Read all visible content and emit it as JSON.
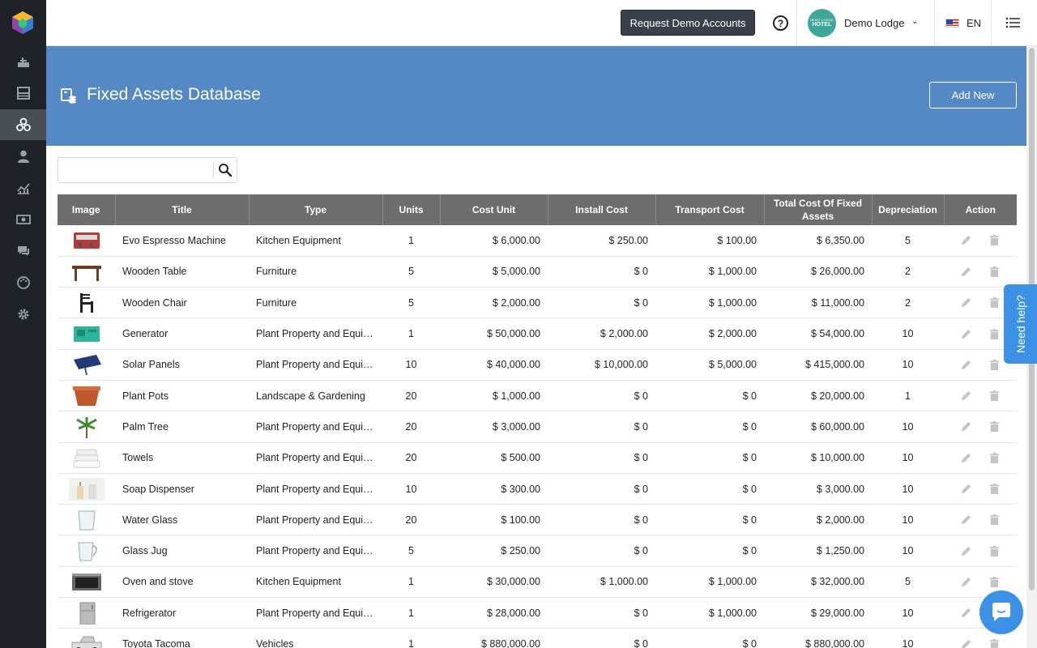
{
  "topbar": {
    "demo_button": "Request Demo Accounts",
    "hotel_name": "Demo Lodge",
    "avatar_small": "DEMO LODGE",
    "avatar_big": "HOTEL",
    "language": "EN"
  },
  "header": {
    "title": "Fixed Assets Database",
    "add_button": "Add New"
  },
  "search": {
    "value": "",
    "placeholder": ""
  },
  "table": {
    "columns": [
      "Image",
      "Title",
      "Type",
      "Units",
      "Cost Unit",
      "Install Cost",
      "Transport Cost",
      "Total Cost Of Fixed Assets",
      "Depreciation",
      "Action"
    ],
    "rows": [
      {
        "image": "espresso-machine",
        "title": "Evo Espresso Machine",
        "type": "Kitchen Equipment",
        "units": "1",
        "cost_unit": "$ 6,000.00",
        "install": "$ 250.00",
        "transport": "$ 100.00",
        "total": "$ 6,350.00",
        "depreciation": "5"
      },
      {
        "image": "wooden-table",
        "title": "Wooden Table",
        "type": "Furniture",
        "units": "5",
        "cost_unit": "$ 5,000.00",
        "install": "$ 0",
        "transport": "$ 1,000.00",
        "total": "$ 26,000.00",
        "depreciation": "2"
      },
      {
        "image": "wooden-chair",
        "title": "Wooden Chair",
        "type": "Furniture",
        "units": "5",
        "cost_unit": "$ 2,000.00",
        "install": "$ 0",
        "transport": "$ 1,000.00",
        "total": "$ 11,000.00",
        "depreciation": "2"
      },
      {
        "image": "generator",
        "title": "Generator",
        "type": "Plant Property and Equipment",
        "units": "1",
        "cost_unit": "$ 50,000.00",
        "install": "$ 2,000.00",
        "transport": "$ 2,000.00",
        "total": "$ 54,000.00",
        "depreciation": "10"
      },
      {
        "image": "solar-panel",
        "title": "Solar Panels",
        "type": "Plant Property and Equipment",
        "units": "10",
        "cost_unit": "$ 40,000.00",
        "install": "$ 10,000.00",
        "transport": "$ 5,000.00",
        "total": "$ 415,000.00",
        "depreciation": "10"
      },
      {
        "image": "plant-pot",
        "title": "Plant Pots",
        "type": "Landscape & Gardening",
        "units": "20",
        "cost_unit": "$ 1,000.00",
        "install": "$ 0",
        "transport": "$ 0",
        "total": "$ 20,000.00",
        "depreciation": "1"
      },
      {
        "image": "palm-tree",
        "title": "Palm Tree",
        "type": "Plant Property and Equipment",
        "units": "20",
        "cost_unit": "$ 3,000.00",
        "install": "$ 0",
        "transport": "$ 0",
        "total": "$ 60,000.00",
        "depreciation": "10"
      },
      {
        "image": "towels",
        "title": "Towels",
        "type": "Plant Property and Equipment",
        "units": "20",
        "cost_unit": "$ 500.00",
        "install": "$ 0",
        "transport": "$ 0",
        "total": "$ 10,000.00",
        "depreciation": "10"
      },
      {
        "image": "soap-dispenser",
        "title": "Soap Dispenser",
        "type": "Plant Property and Equipment",
        "units": "10",
        "cost_unit": "$ 300.00",
        "install": "$ 0",
        "transport": "$ 0",
        "total": "$ 3,000.00",
        "depreciation": "10"
      },
      {
        "image": "water-glass",
        "title": "Water Glass",
        "type": "Plant Property and Equipment",
        "units": "20",
        "cost_unit": "$ 100.00",
        "install": "$ 0",
        "transport": "$ 0",
        "total": "$ 2,000.00",
        "depreciation": "10"
      },
      {
        "image": "glass-jug",
        "title": "Glass Jug",
        "type": "Plant Property and Equipment",
        "units": "5",
        "cost_unit": "$ 250.00",
        "install": "$ 0",
        "transport": "$ 0",
        "total": "$ 1,250.00",
        "depreciation": "10"
      },
      {
        "image": "oven",
        "title": "Oven and stove",
        "type": "Kitchen Equipment",
        "units": "1",
        "cost_unit": "$ 30,000.00",
        "install": "$ 1,000.00",
        "transport": "$ 1,000.00",
        "total": "$ 32,000.00",
        "depreciation": "5"
      },
      {
        "image": "refrigerator",
        "title": "Refrigerator",
        "type": "Plant Property and Equipment",
        "units": "1",
        "cost_unit": "$ 28,000.00",
        "install": "$ 0",
        "transport": "$ 1,000.00",
        "total": "$ 29,000.00",
        "depreciation": "10"
      },
      {
        "image": "pickup-truck",
        "title": "Toyota Tacoma",
        "type": "Vehicles",
        "units": "1",
        "cost_unit": "$ 880,000.00",
        "install": "$ 0",
        "transport": "$ 0",
        "total": "$ 880,000.00",
        "depreciation": "10"
      }
    ]
  },
  "need_help": "Need help?",
  "sidebar": {
    "items": [
      "pos-icon",
      "rooms-icon",
      "assets-icon",
      "guests-icon",
      "reports-icon",
      "finance-icon",
      "chat-icon",
      "palette-icon",
      "settings-icon"
    ],
    "active": "assets-icon"
  },
  "colors": {
    "header_blue": "#5589c6",
    "sidebar_dark": "#1f2328",
    "table_header": "#6d6d6d",
    "help_blue": "#3a91e6"
  }
}
